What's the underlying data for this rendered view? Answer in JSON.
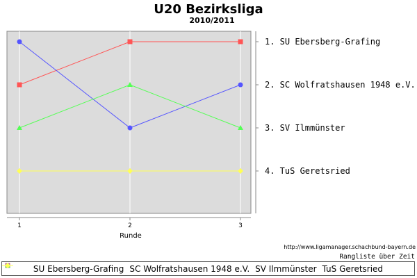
{
  "chart_data": {
    "type": "line",
    "title": "U20 Bezirksliga",
    "subtitle": "2010/2011",
    "xlabel": "Runde",
    "ylabel": "",
    "x": [
      1,
      2,
      3
    ],
    "x_tick_labels": [
      "1",
      "2",
      "3"
    ],
    "xlim": [
      1,
      3
    ],
    "ylim": [
      1,
      5
    ],
    "y_axis_inverted": true,
    "grid": true,
    "legend_position": "bottom",
    "right_axis_labels": [
      {
        "rank": 1,
        "label": "1. SU Ebersberg-Grafing"
      },
      {
        "rank": 2,
        "label": "2. SC Wolfratshausen 1948 e.V."
      },
      {
        "rank": 3,
        "label": "3. SV Ilmmünster"
      },
      {
        "rank": 4,
        "label": "4. TuS Geretsried"
      }
    ],
    "series": [
      {
        "name": "SU Ebersberg-Grafing",
        "values": [
          2,
          1,
          1
        ],
        "color": "#ff5555",
        "marker": "square"
      },
      {
        "name": "SC Wolfratshausen 1948 e.V.",
        "values": [
          1,
          3,
          2
        ],
        "color": "#5555ff",
        "marker": "circle"
      },
      {
        "name": "SV Ilmmünster",
        "values": [
          3,
          2,
          3
        ],
        "color": "#55ff55",
        "marker": "triangle"
      },
      {
        "name": "TuS Geretsried",
        "values": [
          4,
          4,
          4
        ],
        "color": "#ffff55",
        "marker": "diamond"
      }
    ]
  },
  "source_url": "http://www.ligamanager.schachbund-bayern.de",
  "caption": "Rangliste über Zeit",
  "colors": {
    "plot_background": "#dcdcdc",
    "gridline": "#ffffff",
    "axis": "#888888"
  }
}
